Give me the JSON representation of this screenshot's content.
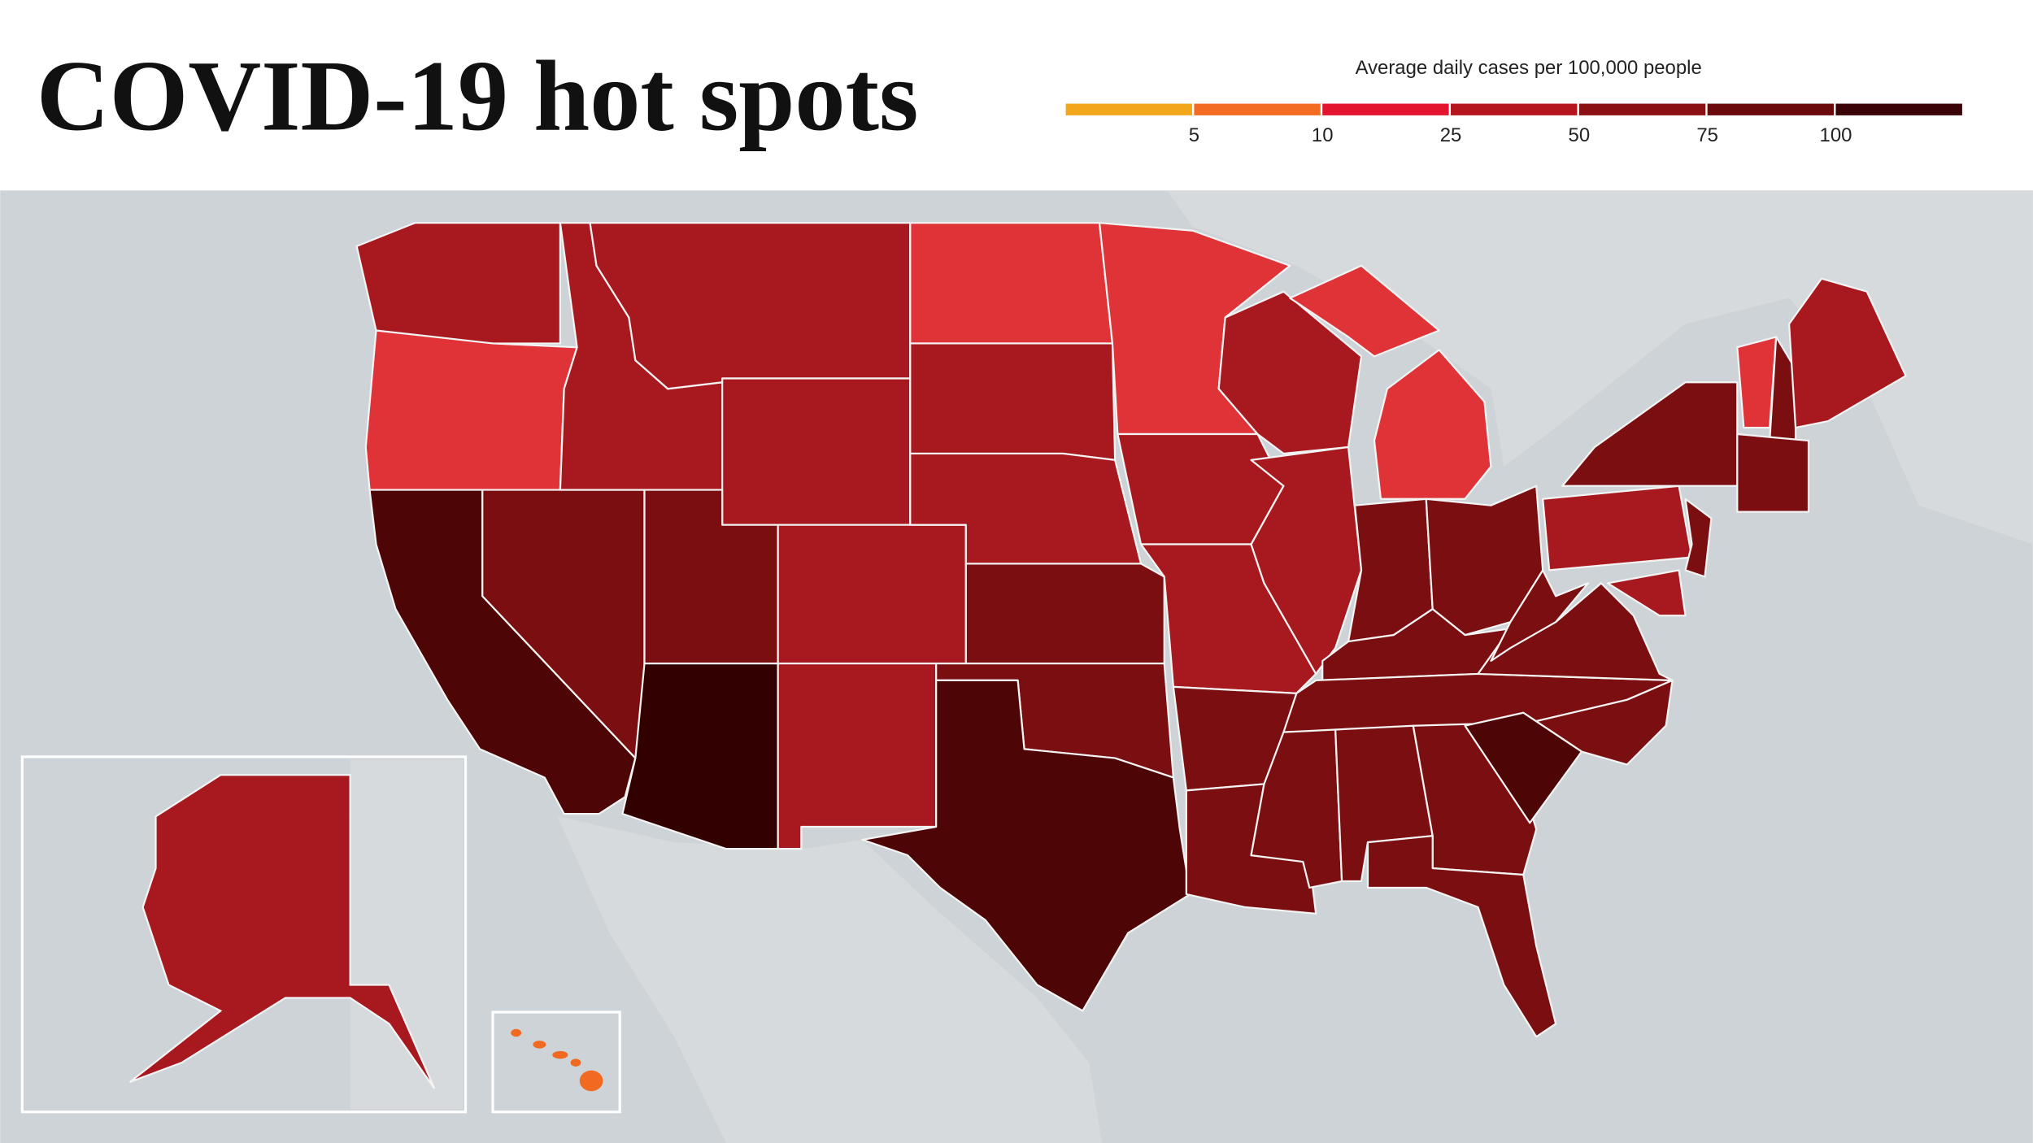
{
  "header": {
    "title": "COVID-19 hot spots"
  },
  "legend": {
    "title": "Average daily cases per 100,000 people",
    "colors": [
      "#f2a71b",
      "#f36b21",
      "#e2142e",
      "#b5151d",
      "#8a1014",
      "#6a0a0d",
      "#3a0305"
    ],
    "ticks": [
      5,
      10,
      25,
      50,
      75,
      100
    ]
  }
}
